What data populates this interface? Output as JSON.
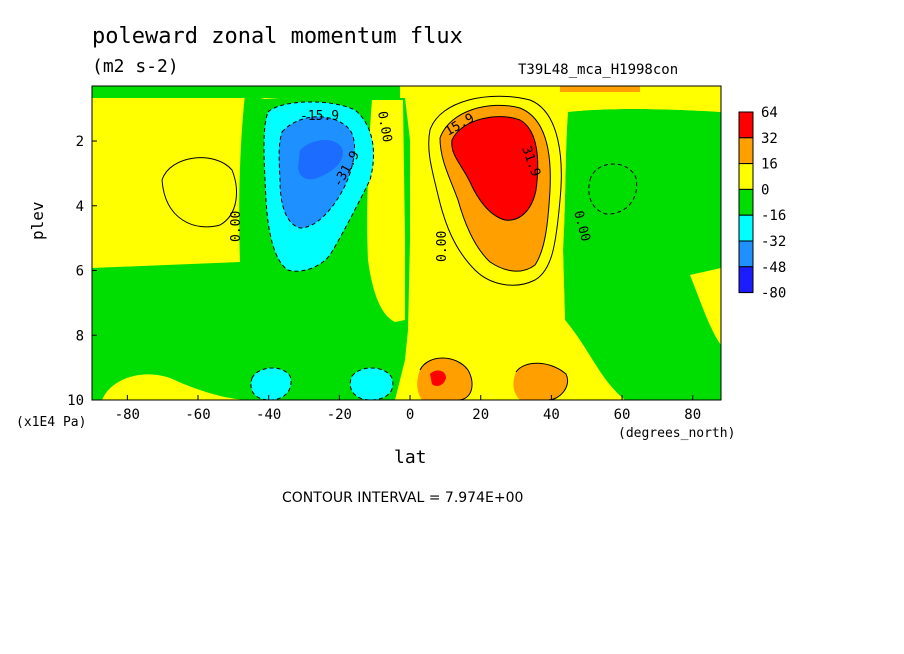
{
  "chart_data": {
    "type": "contour",
    "title": "poleward zonal momentum flux",
    "units": "(m2 s-2)",
    "run_label": "T39L48_mca_H1998con",
    "xlabel": "lat",
    "x_unit_label": "(degrees_north)",
    "ylabel": "plev",
    "y_unit_label": "(x1E4 Pa)",
    "xlim": [
      -90,
      88
    ],
    "ylim": [
      0.3,
      10
    ],
    "y_inverted": true,
    "x_ticks": [
      -80,
      -60,
      -40,
      -20,
      0,
      20,
      40,
      60,
      80
    ],
    "y_ticks": [
      2,
      4,
      6,
      8,
      10
    ],
    "contour_interval_label": "CONTOUR INTERVAL = 7.974E+00",
    "contour_labels": [
      "-15.9",
      "-31.9",
      "0.00",
      "0.00",
      "0.00",
      "15.9",
      "31.9",
      "0.00"
    ],
    "legend": {
      "placement": "right",
      "levels": [
        "64",
        "32",
        "16",
        "0",
        "-16",
        "-32",
        "-48",
        "-80"
      ],
      "colors": [
        "#ff0000",
        "#ff9f00",
        "#ffff00",
        "#00dd00",
        "#00ffff",
        "#1e90ff",
        "#1c1cff"
      ]
    },
    "features": [
      {
        "lat": 25,
        "plev": 2.5,
        "level": ">32",
        "color": "#ff0000"
      },
      {
        "lat": -25,
        "plev": 2.5,
        "level": "<-32",
        "color": "#1e90ff"
      },
      {
        "lat": 8,
        "plev": 9.3,
        "level": ">32",
        "color": "#ff0000"
      },
      {
        "lat": -38,
        "plev": 9.5,
        "level": "<-16",
        "color": "#00ffff"
      },
      {
        "lat": -10,
        "plev": 9.5,
        "level": "<-16",
        "color": "#00ffff"
      },
      {
        "lat": 38,
        "plev": 9.4,
        "level": ">16",
        "color": "#ff9f00"
      }
    ]
  }
}
